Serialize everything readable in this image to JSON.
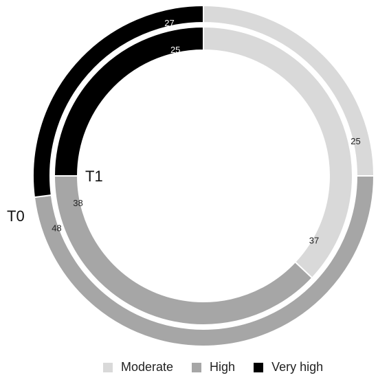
{
  "chart_data": {
    "type": "donut",
    "title": "",
    "categories": [
      "Moderate",
      "High",
      "Very high"
    ],
    "colors": {
      "Moderate": "#d9d9d9",
      "High": "#a6a6a6",
      "Very high": "#000000"
    },
    "series": [
      {
        "name": "T0",
        "ring": "outer",
        "values": [
          25,
          48,
          27
        ]
      },
      {
        "name": "T1",
        "ring": "inner",
        "values": [
          37,
          38,
          25
        ]
      }
    ],
    "legend_position": "bottom"
  },
  "labels": {
    "outer": "T0",
    "inner": "T1"
  },
  "legend": [
    {
      "label": "Moderate",
      "color": "#d9d9d9"
    },
    {
      "label": "High",
      "color": "#a6a6a6"
    },
    {
      "label": "Very high",
      "color": "#000000"
    }
  ]
}
